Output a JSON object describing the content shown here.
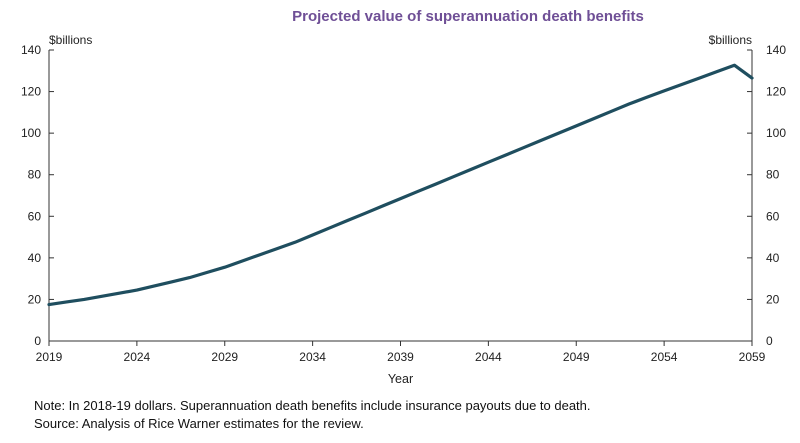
{
  "chart_data": {
    "type": "line",
    "title": "Projected value of superannuation death benefits",
    "xlabel": "Year",
    "ylabel_left": "$billions",
    "ylabel_right": "$billions",
    "ylim": [
      0,
      140
    ],
    "y_ticks": [
      0,
      20,
      40,
      60,
      80,
      100,
      120,
      140
    ],
    "xlim": [
      2019,
      2059
    ],
    "x_ticks": [
      2019,
      2024,
      2029,
      2034,
      2039,
      2044,
      2049,
      2054,
      2059
    ],
    "grid": false,
    "line_color": "#1f4e5f",
    "series": [
      {
        "x": [
          2019,
          2020,
          2021,
          2022,
          2023,
          2024,
          2025,
          2026,
          2027,
          2028,
          2029,
          2030,
          2031,
          2032,
          2033,
          2034,
          2035,
          2036,
          2037,
          2038,
          2039,
          2040,
          2041,
          2042,
          2043,
          2044,
          2045,
          2046,
          2047,
          2048,
          2049,
          2050,
          2051,
          2052,
          2053,
          2054,
          2055,
          2056,
          2057,
          2058,
          2059
        ],
        "values": [
          17.5,
          18.8,
          20,
          21.5,
          23,
          24.5,
          26.5,
          28.5,
          30.5,
          33,
          35.5,
          38.5,
          41.5,
          44.5,
          47.5,
          51,
          54.5,
          58,
          61.5,
          65,
          68.5,
          72,
          75.5,
          79,
          82.5,
          86,
          89.5,
          93,
          96.5,
          100,
          103.5,
          107,
          110.5,
          114,
          117.2,
          120.3,
          123.4,
          126.5,
          129.6,
          132.7,
          126.5
        ]
      }
    ]
  },
  "notes": {
    "line1": "Note: In 2018-19 dollars. Superannuation death benefits include insurance payouts due to death.",
    "line2": "Source: Analysis of Rice Warner estimates for the review."
  }
}
